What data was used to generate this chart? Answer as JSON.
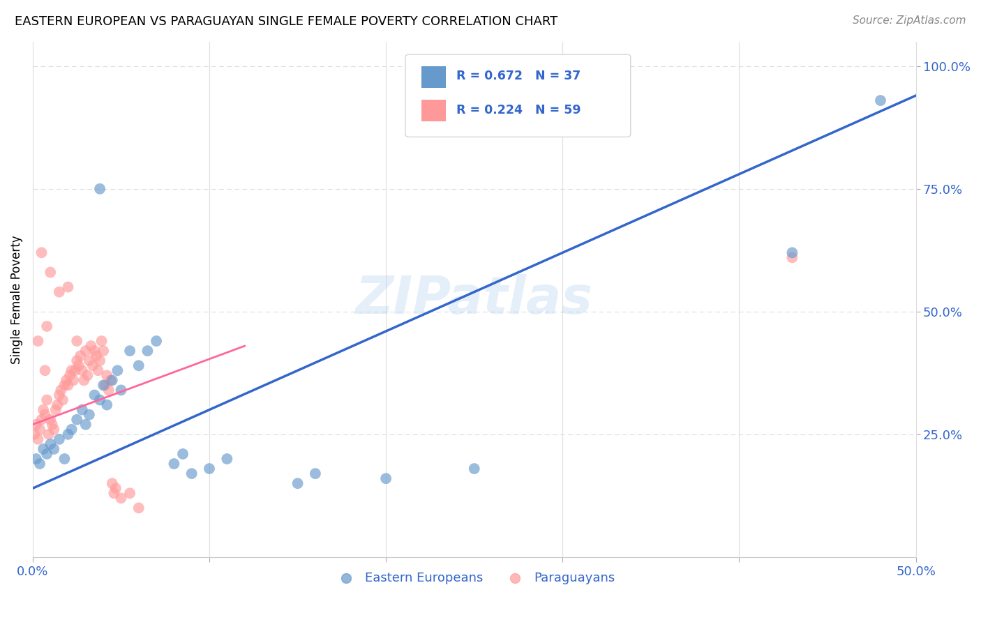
{
  "title": "EASTERN EUROPEAN VS PARAGUAYAN SINGLE FEMALE POVERTY CORRELATION CHART",
  "source": "Source: ZipAtlas.com",
  "ylabel": "Single Female Poverty",
  "ylabel_right_ticks": [
    "100.0%",
    "75.0%",
    "50.0%",
    "25.0%"
  ],
  "ylabel_right_vals": [
    1.0,
    0.75,
    0.5,
    0.25
  ],
  "watermark": "ZIPatlas",
  "legend_blue_r": "R = 0.672",
  "legend_blue_n": "N = 37",
  "legend_pink_r": "R = 0.224",
  "legend_pink_n": "N = 59",
  "blue_color": "#6699CC",
  "pink_color": "#FF9999",
  "line_blue_color": "#3366CC",
  "line_pink_color": "#FF6699",
  "blue_scatter": [
    [
      0.002,
      0.2
    ],
    [
      0.004,
      0.19
    ],
    [
      0.006,
      0.22
    ],
    [
      0.008,
      0.21
    ],
    [
      0.01,
      0.23
    ],
    [
      0.012,
      0.22
    ],
    [
      0.015,
      0.24
    ],
    [
      0.018,
      0.2
    ],
    [
      0.02,
      0.25
    ],
    [
      0.022,
      0.26
    ],
    [
      0.025,
      0.28
    ],
    [
      0.028,
      0.3
    ],
    [
      0.03,
      0.27
    ],
    [
      0.032,
      0.29
    ],
    [
      0.035,
      0.33
    ],
    [
      0.038,
      0.32
    ],
    [
      0.04,
      0.35
    ],
    [
      0.042,
      0.31
    ],
    [
      0.045,
      0.36
    ],
    [
      0.048,
      0.38
    ],
    [
      0.05,
      0.34
    ],
    [
      0.055,
      0.42
    ],
    [
      0.06,
      0.39
    ],
    [
      0.065,
      0.42
    ],
    [
      0.07,
      0.44
    ],
    [
      0.08,
      0.19
    ],
    [
      0.085,
      0.21
    ],
    [
      0.09,
      0.17
    ],
    [
      0.1,
      0.18
    ],
    [
      0.11,
      0.2
    ],
    [
      0.15,
      0.15
    ],
    [
      0.16,
      0.17
    ],
    [
      0.2,
      0.16
    ],
    [
      0.25,
      0.18
    ],
    [
      0.038,
      0.75
    ],
    [
      0.43,
      0.62
    ],
    [
      0.48,
      0.93
    ]
  ],
  "pink_scatter": [
    [
      0.001,
      0.25
    ],
    [
      0.002,
      0.27
    ],
    [
      0.003,
      0.24
    ],
    [
      0.004,
      0.26
    ],
    [
      0.005,
      0.28
    ],
    [
      0.006,
      0.3
    ],
    [
      0.007,
      0.29
    ],
    [
      0.008,
      0.32
    ],
    [
      0.009,
      0.25
    ],
    [
      0.01,
      0.28
    ],
    [
      0.011,
      0.27
    ],
    [
      0.012,
      0.26
    ],
    [
      0.013,
      0.3
    ],
    [
      0.014,
      0.31
    ],
    [
      0.015,
      0.33
    ],
    [
      0.016,
      0.34
    ],
    [
      0.017,
      0.32
    ],
    [
      0.018,
      0.35
    ],
    [
      0.019,
      0.36
    ],
    [
      0.02,
      0.35
    ],
    [
      0.021,
      0.37
    ],
    [
      0.022,
      0.38
    ],
    [
      0.023,
      0.36
    ],
    [
      0.024,
      0.38
    ],
    [
      0.025,
      0.4
    ],
    [
      0.026,
      0.39
    ],
    [
      0.027,
      0.41
    ],
    [
      0.028,
      0.38
    ],
    [
      0.029,
      0.36
    ],
    [
      0.03,
      0.42
    ],
    [
      0.031,
      0.37
    ],
    [
      0.032,
      0.4
    ],
    [
      0.033,
      0.43
    ],
    [
      0.034,
      0.39
    ],
    [
      0.035,
      0.42
    ],
    [
      0.036,
      0.41
    ],
    [
      0.037,
      0.38
    ],
    [
      0.038,
      0.4
    ],
    [
      0.039,
      0.44
    ],
    [
      0.04,
      0.42
    ],
    [
      0.041,
      0.35
    ],
    [
      0.042,
      0.37
    ],
    [
      0.043,
      0.34
    ],
    [
      0.044,
      0.36
    ],
    [
      0.045,
      0.15
    ],
    [
      0.046,
      0.13
    ],
    [
      0.047,
      0.14
    ],
    [
      0.05,
      0.12
    ],
    [
      0.055,
      0.13
    ],
    [
      0.06,
      0.1
    ],
    [
      0.01,
      0.58
    ],
    [
      0.015,
      0.54
    ],
    [
      0.02,
      0.55
    ],
    [
      0.005,
      0.62
    ],
    [
      0.008,
      0.47
    ],
    [
      0.025,
      0.44
    ],
    [
      0.003,
      0.44
    ],
    [
      0.43,
      0.61
    ],
    [
      0.007,
      0.38
    ]
  ],
  "xmin": 0.0,
  "xmax": 0.5,
  "ymin": 0.0,
  "ymax": 1.05,
  "blue_line": [
    [
      0.0,
      0.14
    ],
    [
      0.5,
      0.94
    ]
  ],
  "pink_line": [
    [
      0.0,
      0.27
    ],
    [
      0.12,
      0.43
    ]
  ],
  "diag_line": [
    [
      0.0,
      0.0
    ],
    [
      1.0,
      1.0
    ]
  ]
}
